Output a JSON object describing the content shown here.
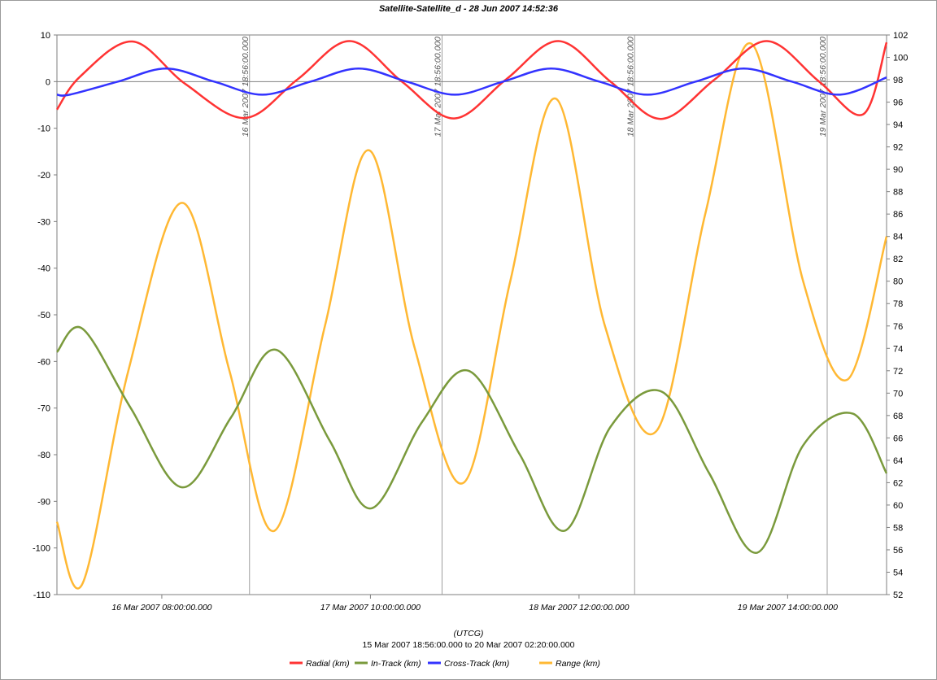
{
  "chart_data": {
    "type": "line",
    "title": "Satellite-Satellite_d - 28 Jun 2007 14:52:36",
    "xlabel": "(UTCG)",
    "time_range_label": "15 Mar 2007 18:56:00.000  to  20 Mar 2007 02:20:00.000",
    "x_range_hours": [
      0,
      103.4
    ],
    "x_ticks": [
      {
        "hour": 13.07,
        "label": "16 Mar 2007 08:00:00.000"
      },
      {
        "hour": 39.07,
        "label": "17 Mar 2007 10:00:00.000"
      },
      {
        "hour": 65.07,
        "label": "18 Mar 2007 12:00:00.000"
      },
      {
        "hour": 91.07,
        "label": "19 Mar 2007 14:00:00.000"
      }
    ],
    "vertical_markers": [
      {
        "hour": 24,
        "label": "16 Mar 2007 18:56:00.000"
      },
      {
        "hour": 48,
        "label": "17 Mar 2007 18:56:00.000"
      },
      {
        "hour": 72,
        "label": "18 Mar 2007 18:56:00.000"
      },
      {
        "hour": 96,
        "label": "19 Mar 2007 18:56:00.000"
      }
    ],
    "y_left": {
      "ylim": [
        -110,
        10
      ],
      "ticks": [
        10,
        0,
        -10,
        -20,
        -30,
        -40,
        -50,
        -60,
        -70,
        -80,
        -90,
        -100,
        -110
      ]
    },
    "y_right": {
      "ylim": [
        52,
        102
      ],
      "ticks": [
        102,
        100,
        98,
        96,
        94,
        92,
        90,
        88,
        86,
        84,
        82,
        80,
        78,
        76,
        74,
        72,
        70,
        68,
        66,
        64,
        62,
        60,
        58,
        56,
        54,
        52
      ]
    },
    "grid": "zero line and vertical markers only",
    "legend_position": "bottom-center",
    "series": [
      {
        "name": "Radial (km)",
        "color": "#ff3333",
        "axis": "left",
        "x": [
          0,
          2.9,
          9.4,
          16,
          23.4,
          30,
          36.5,
          43,
          49.5,
          56,
          62.5,
          69,
          75.3,
          82,
          88.5,
          95,
          100.5,
          103.4
        ],
        "y": [
          -6,
          1.1,
          8.6,
          -0.5,
          -7.8,
          0.5,
          8.7,
          0,
          -7.9,
          0.5,
          8.7,
          0,
          -8,
          0.5,
          8.7,
          0,
          -7,
          8.4
        ]
      },
      {
        "name": "In-Track (km)",
        "color": "#7a9a3c",
        "axis": "left",
        "x": [
          0,
          3.2,
          9.2,
          15.6,
          21.7,
          27.3,
          34,
          39.2,
          45.5,
          51.3,
          57.7,
          63.3,
          69,
          75.4,
          81.3,
          87.3,
          93,
          99.2,
          103.4
        ],
        "y": [
          -58,
          -53,
          -70,
          -87,
          -72,
          -57.5,
          -77,
          -91.5,
          -73,
          -62,
          -80,
          -96.3,
          -74,
          -66.5,
          -84,
          -101,
          -78,
          -71.2,
          -84
        ]
      },
      {
        "name": "Cross-Track (km)",
        "color": "#3333ff",
        "axis": "left",
        "x": [
          0,
          1.6,
          7.6,
          13.6,
          19.6,
          25.6,
          31.6,
          37.6,
          43.6,
          49.6,
          55.6,
          61.6,
          67.6,
          73.6,
          79.6,
          85.6,
          91.6,
          97.6,
          103.4
        ],
        "y": [
          -2.8,
          -2.8,
          0,
          2.8,
          0,
          -2.8,
          0,
          2.8,
          0,
          -2.8,
          0,
          2.8,
          0,
          -2.8,
          0,
          2.8,
          0,
          -2.8,
          0.9
        ]
      },
      {
        "name": "Range (km)",
        "color": "#ffb833",
        "axis": "right",
        "x": [
          0,
          3.2,
          8.9,
          15.6,
          21.5,
          27.1,
          33.4,
          38.9,
          44.6,
          50.7,
          56.5,
          62.2,
          68.3,
          74.7,
          80.8,
          86.6,
          93,
          98.5,
          103.4
        ],
        "y": [
          58.5,
          53,
          72,
          87,
          72,
          57.7,
          76,
          91.7,
          74,
          62,
          80,
          96.3,
          76,
          66.6,
          86,
          101.2,
          80,
          71.2,
          84
        ]
      }
    ]
  }
}
